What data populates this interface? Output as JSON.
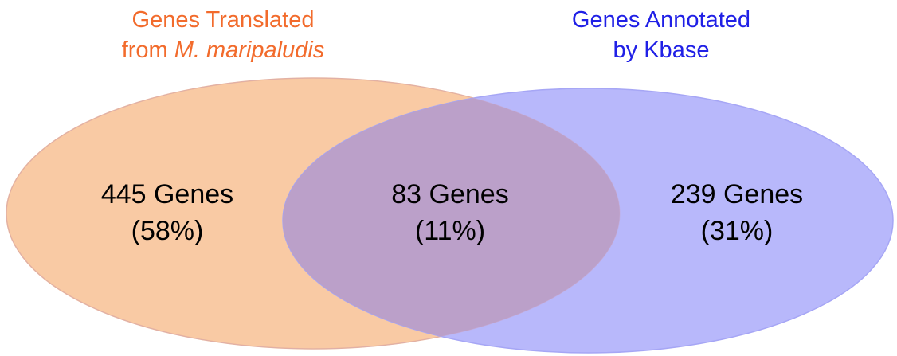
{
  "colors": {
    "left_fill": "#f9caa4",
    "left_stroke": "#f2b98f",
    "right_fill": "#b8b8fb",
    "right_stroke": "#a6a6f5",
    "overlap_fill": "#bba0c9",
    "left_title_color": "#f26b2c",
    "right_title_color": "#2020e6"
  },
  "sets": {
    "left": {
      "title_line1": "Genes Translated",
      "title_line2_prefix": "from ",
      "title_line2_italic": "M. maripaludis"
    },
    "right": {
      "title_line1": "Genes Annotated",
      "title_line2": "by Kbase"
    }
  },
  "regions": {
    "left_only": {
      "count": "445 Genes",
      "percent": "(58%)"
    },
    "intersection": {
      "count": "83 Genes",
      "percent": "(11%)"
    },
    "right_only": {
      "count": "239 Genes",
      "percent": "(31%)"
    }
  }
}
